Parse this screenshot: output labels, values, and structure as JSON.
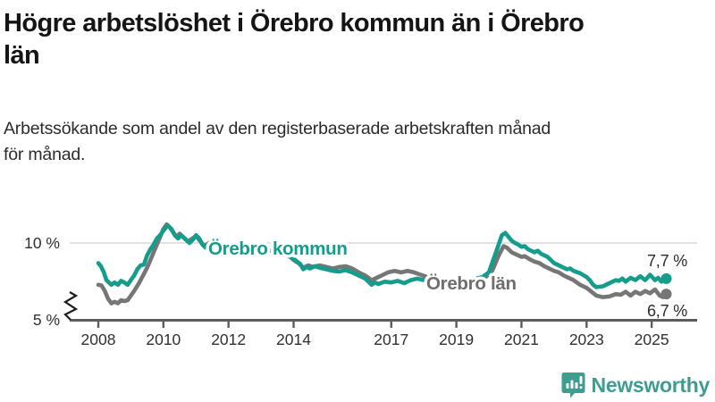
{
  "header": {
    "title_lines": [
      "Högre arbetslöshet i Örebro kommun än i Örebro",
      "län"
    ],
    "subtitle_lines": [
      "Arbetssökande som andel av den registerbaserade arbetskraften månad",
      "för månad."
    ]
  },
  "chart_data": {
    "type": "line",
    "title": "Högre arbetslöshet i Örebro kommun än i Örebro län",
    "subtitle": "Arbetssökande som andel av den registerbaserade arbetskraften månad för månad.",
    "unit": "%",
    "x_axis": {
      "tick_years": [
        2008,
        2010,
        2012,
        2014,
        2017,
        2019,
        2021,
        2023,
        2025
      ],
      "range": [
        2007.1,
        2025.6
      ]
    },
    "y_axis": {
      "ticks": [
        {
          "label": "10 %",
          "value": 10
        },
        {
          "label": "5 %",
          "value": 5
        }
      ],
      "range": [
        5,
        11.5
      ],
      "broken_axis": true,
      "grid_at": [
        10
      ]
    },
    "series": [
      {
        "name": "Örebro kommun",
        "color": "#149c8c",
        "label_color": "#149c8c",
        "end_label": "7,7 %",
        "end_value": 7.7,
        "points": [
          [
            2008.0,
            8.7
          ],
          [
            2008.08,
            8.5
          ],
          [
            2008.17,
            8.1
          ],
          [
            2008.25,
            7.6
          ],
          [
            2008.4,
            7.3
          ],
          [
            2008.5,
            7.45
          ],
          [
            2008.6,
            7.3
          ],
          [
            2008.7,
            7.55
          ],
          [
            2008.8,
            7.45
          ],
          [
            2008.9,
            7.3
          ],
          [
            2009.0,
            7.6
          ],
          [
            2009.1,
            7.9
          ],
          [
            2009.2,
            8.3
          ],
          [
            2009.3,
            8.55
          ],
          [
            2009.4,
            8.6
          ],
          [
            2009.5,
            9.2
          ],
          [
            2009.6,
            9.6
          ],
          [
            2009.7,
            9.9
          ],
          [
            2009.8,
            10.3
          ],
          [
            2009.9,
            10.5
          ],
          [
            2010.0,
            10.8
          ],
          [
            2010.1,
            11.05
          ],
          [
            2010.15,
            11.1
          ],
          [
            2010.25,
            10.9
          ],
          [
            2010.35,
            10.5
          ],
          [
            2010.45,
            10.3
          ],
          [
            2010.55,
            10.5
          ],
          [
            2010.65,
            10.3
          ],
          [
            2010.8,
            10.0
          ],
          [
            2010.9,
            10.2
          ],
          [
            2011.0,
            10.5
          ],
          [
            2011.1,
            10.3
          ],
          [
            2011.2,
            9.9
          ],
          [
            2011.3,
            9.7
          ],
          [
            2011.45,
            10.0
          ],
          [
            2011.55,
            10.2
          ],
          [
            2011.65,
            10.0
          ],
          [
            2011.8,
            9.6
          ],
          [
            2011.9,
            9.4
          ],
          [
            2012.0,
            9.7
          ],
          [
            2012.1,
            9.9
          ],
          [
            2012.2,
            9.7
          ],
          [
            2012.35,
            9.5
          ],
          [
            2012.5,
            9.6
          ],
          [
            2012.65,
            9.5
          ],
          [
            2012.8,
            9.4
          ],
          [
            2013.0,
            9.5
          ],
          [
            2013.2,
            9.6
          ],
          [
            2013.4,
            9.4
          ],
          [
            2013.6,
            9.3
          ],
          [
            2013.8,
            9.2
          ],
          [
            2014.0,
            9.0
          ],
          [
            2014.1,
            8.8
          ],
          [
            2014.2,
            8.65
          ],
          [
            2014.3,
            8.3
          ],
          [
            2014.4,
            8.45
          ],
          [
            2014.5,
            8.35
          ],
          [
            2014.65,
            8.5
          ],
          [
            2014.8,
            8.4
          ],
          [
            2015.0,
            8.3
          ],
          [
            2015.2,
            8.2
          ],
          [
            2015.4,
            8.15
          ],
          [
            2015.6,
            8.25
          ],
          [
            2015.8,
            8.1
          ],
          [
            2016.0,
            7.9
          ],
          [
            2016.2,
            7.7
          ],
          [
            2016.4,
            7.3
          ],
          [
            2016.5,
            7.45
          ],
          [
            2016.6,
            7.35
          ],
          [
            2016.8,
            7.5
          ],
          [
            2017.0,
            7.45
          ],
          [
            2017.2,
            7.55
          ],
          [
            2017.4,
            7.4
          ],
          [
            2017.6,
            7.6
          ],
          [
            2017.8,
            7.7
          ],
          [
            2018.0,
            7.6
          ],
          [
            2018.2,
            7.7
          ],
          [
            2018.4,
            7.55
          ],
          [
            2018.6,
            7.6
          ],
          [
            2018.8,
            7.5
          ],
          [
            2019.0,
            7.6
          ],
          [
            2019.2,
            7.65
          ],
          [
            2019.4,
            7.6
          ],
          [
            2019.6,
            7.7
          ],
          [
            2019.8,
            7.8
          ],
          [
            2020.0,
            8.1
          ],
          [
            2020.2,
            9.3
          ],
          [
            2020.4,
            10.5
          ],
          [
            2020.5,
            10.65
          ],
          [
            2020.6,
            10.4
          ],
          [
            2020.7,
            10.15
          ],
          [
            2020.8,
            10.0
          ],
          [
            2020.9,
            9.9
          ],
          [
            2021.0,
            9.75
          ],
          [
            2021.1,
            9.8
          ],
          [
            2021.2,
            9.6
          ],
          [
            2021.4,
            9.4
          ],
          [
            2021.5,
            9.5
          ],
          [
            2021.6,
            9.3
          ],
          [
            2021.8,
            9.1
          ],
          [
            2022.0,
            8.7
          ],
          [
            2022.2,
            8.5
          ],
          [
            2022.4,
            8.3
          ],
          [
            2022.5,
            8.35
          ],
          [
            2022.6,
            8.2
          ],
          [
            2022.8,
            8.05
          ],
          [
            2023.0,
            7.8
          ],
          [
            2023.1,
            7.6
          ],
          [
            2023.2,
            7.3
          ],
          [
            2023.3,
            7.15
          ],
          [
            2023.5,
            7.2
          ],
          [
            2023.7,
            7.4
          ],
          [
            2023.9,
            7.6
          ],
          [
            2024.0,
            7.55
          ],
          [
            2024.1,
            7.7
          ],
          [
            2024.2,
            7.5
          ],
          [
            2024.35,
            7.75
          ],
          [
            2024.5,
            7.6
          ],
          [
            2024.65,
            7.85
          ],
          [
            2024.8,
            7.6
          ],
          [
            2024.95,
            7.95
          ],
          [
            2025.1,
            7.6
          ],
          [
            2025.2,
            7.75
          ],
          [
            2025.3,
            7.5
          ],
          [
            2025.45,
            7.7
          ]
        ]
      },
      {
        "name": "Örebro län",
        "color": "#767676",
        "label_color": "#6e6e6e",
        "end_label": "6,7 %",
        "end_value": 6.7,
        "points": [
          [
            2008.0,
            7.3
          ],
          [
            2008.1,
            7.25
          ],
          [
            2008.2,
            6.9
          ],
          [
            2008.3,
            6.4
          ],
          [
            2008.4,
            6.1
          ],
          [
            2008.5,
            6.2
          ],
          [
            2008.6,
            6.1
          ],
          [
            2008.7,
            6.3
          ],
          [
            2008.8,
            6.25
          ],
          [
            2008.9,
            6.3
          ],
          [
            2009.0,
            6.6
          ],
          [
            2009.1,
            6.9
          ],
          [
            2009.25,
            7.4
          ],
          [
            2009.4,
            8.0
          ],
          [
            2009.5,
            8.4
          ],
          [
            2009.6,
            8.9
          ],
          [
            2009.7,
            9.4
          ],
          [
            2009.8,
            9.9
          ],
          [
            2009.9,
            10.4
          ],
          [
            2010.0,
            10.9
          ],
          [
            2010.1,
            11.2
          ],
          [
            2010.2,
            11.0
          ],
          [
            2010.3,
            10.7
          ],
          [
            2010.4,
            10.4
          ],
          [
            2010.5,
            10.6
          ],
          [
            2010.6,
            10.4
          ],
          [
            2010.75,
            10.1
          ],
          [
            2010.9,
            10.3
          ],
          [
            2011.0,
            10.45
          ],
          [
            2011.1,
            10.2
          ],
          [
            2011.25,
            9.8
          ],
          [
            2011.4,
            10.0
          ],
          [
            2011.5,
            10.1
          ],
          [
            2011.6,
            9.9
          ],
          [
            2011.75,
            9.6
          ],
          [
            2011.9,
            9.5
          ],
          [
            2012.0,
            9.7
          ],
          [
            2012.15,
            9.8
          ],
          [
            2012.3,
            9.6
          ],
          [
            2012.5,
            9.7
          ],
          [
            2012.7,
            9.6
          ],
          [
            2012.9,
            9.5
          ],
          [
            2013.1,
            9.6
          ],
          [
            2013.3,
            9.5
          ],
          [
            2013.5,
            9.4
          ],
          [
            2013.7,
            9.3
          ],
          [
            2013.9,
            9.1
          ],
          [
            2014.0,
            8.9
          ],
          [
            2014.15,
            8.7
          ],
          [
            2014.3,
            8.4
          ],
          [
            2014.45,
            8.55
          ],
          [
            2014.6,
            8.45
          ],
          [
            2014.8,
            8.55
          ],
          [
            2015.0,
            8.45
          ],
          [
            2015.2,
            8.35
          ],
          [
            2015.4,
            8.45
          ],
          [
            2015.6,
            8.5
          ],
          [
            2015.8,
            8.35
          ],
          [
            2016.0,
            8.1
          ],
          [
            2016.2,
            7.9
          ],
          [
            2016.4,
            7.6
          ],
          [
            2016.55,
            7.75
          ],
          [
            2016.7,
            7.9
          ],
          [
            2016.9,
            8.1
          ],
          [
            2017.1,
            8.2
          ],
          [
            2017.3,
            8.1
          ],
          [
            2017.5,
            8.2
          ],
          [
            2017.7,
            8.1
          ],
          [
            2017.9,
            7.95
          ],
          [
            2018.1,
            7.8
          ],
          [
            2018.3,
            7.85
          ],
          [
            2018.5,
            7.7
          ],
          [
            2018.7,
            7.6
          ],
          [
            2018.9,
            7.55
          ],
          [
            2019.1,
            7.6
          ],
          [
            2019.3,
            7.55
          ],
          [
            2019.5,
            7.6
          ],
          [
            2019.7,
            7.65
          ],
          [
            2019.9,
            7.8
          ],
          [
            2020.1,
            8.2
          ],
          [
            2020.3,
            9.2
          ],
          [
            2020.45,
            9.8
          ],
          [
            2020.55,
            9.7
          ],
          [
            2020.7,
            9.4
          ],
          [
            2020.85,
            9.25
          ],
          [
            2021.0,
            9.1
          ],
          [
            2021.1,
            9.15
          ],
          [
            2021.25,
            8.95
          ],
          [
            2021.4,
            8.8
          ],
          [
            2021.55,
            8.7
          ],
          [
            2021.7,
            8.5
          ],
          [
            2021.85,
            8.35
          ],
          [
            2022.0,
            8.2
          ],
          [
            2022.15,
            8.1
          ],
          [
            2022.3,
            7.9
          ],
          [
            2022.45,
            7.75
          ],
          [
            2022.6,
            7.6
          ],
          [
            2022.8,
            7.3
          ],
          [
            2023.0,
            7.1
          ],
          [
            2023.15,
            6.85
          ],
          [
            2023.3,
            6.6
          ],
          [
            2023.5,
            6.5
          ],
          [
            2023.7,
            6.55
          ],
          [
            2023.9,
            6.7
          ],
          [
            2024.05,
            6.65
          ],
          [
            2024.2,
            6.85
          ],
          [
            2024.35,
            6.6
          ],
          [
            2024.5,
            6.85
          ],
          [
            2024.65,
            6.7
          ],
          [
            2024.8,
            6.9
          ],
          [
            2024.95,
            6.75
          ],
          [
            2025.1,
            7.0
          ],
          [
            2025.25,
            6.6
          ],
          [
            2025.35,
            6.5
          ],
          [
            2025.45,
            6.7
          ]
        ]
      }
    ]
  },
  "branding": {
    "logo_text": "Newsworthy",
    "logo_color": "#3e9c91",
    "logo_icon": "newsworthy-bar-chart-bubble-icon"
  }
}
